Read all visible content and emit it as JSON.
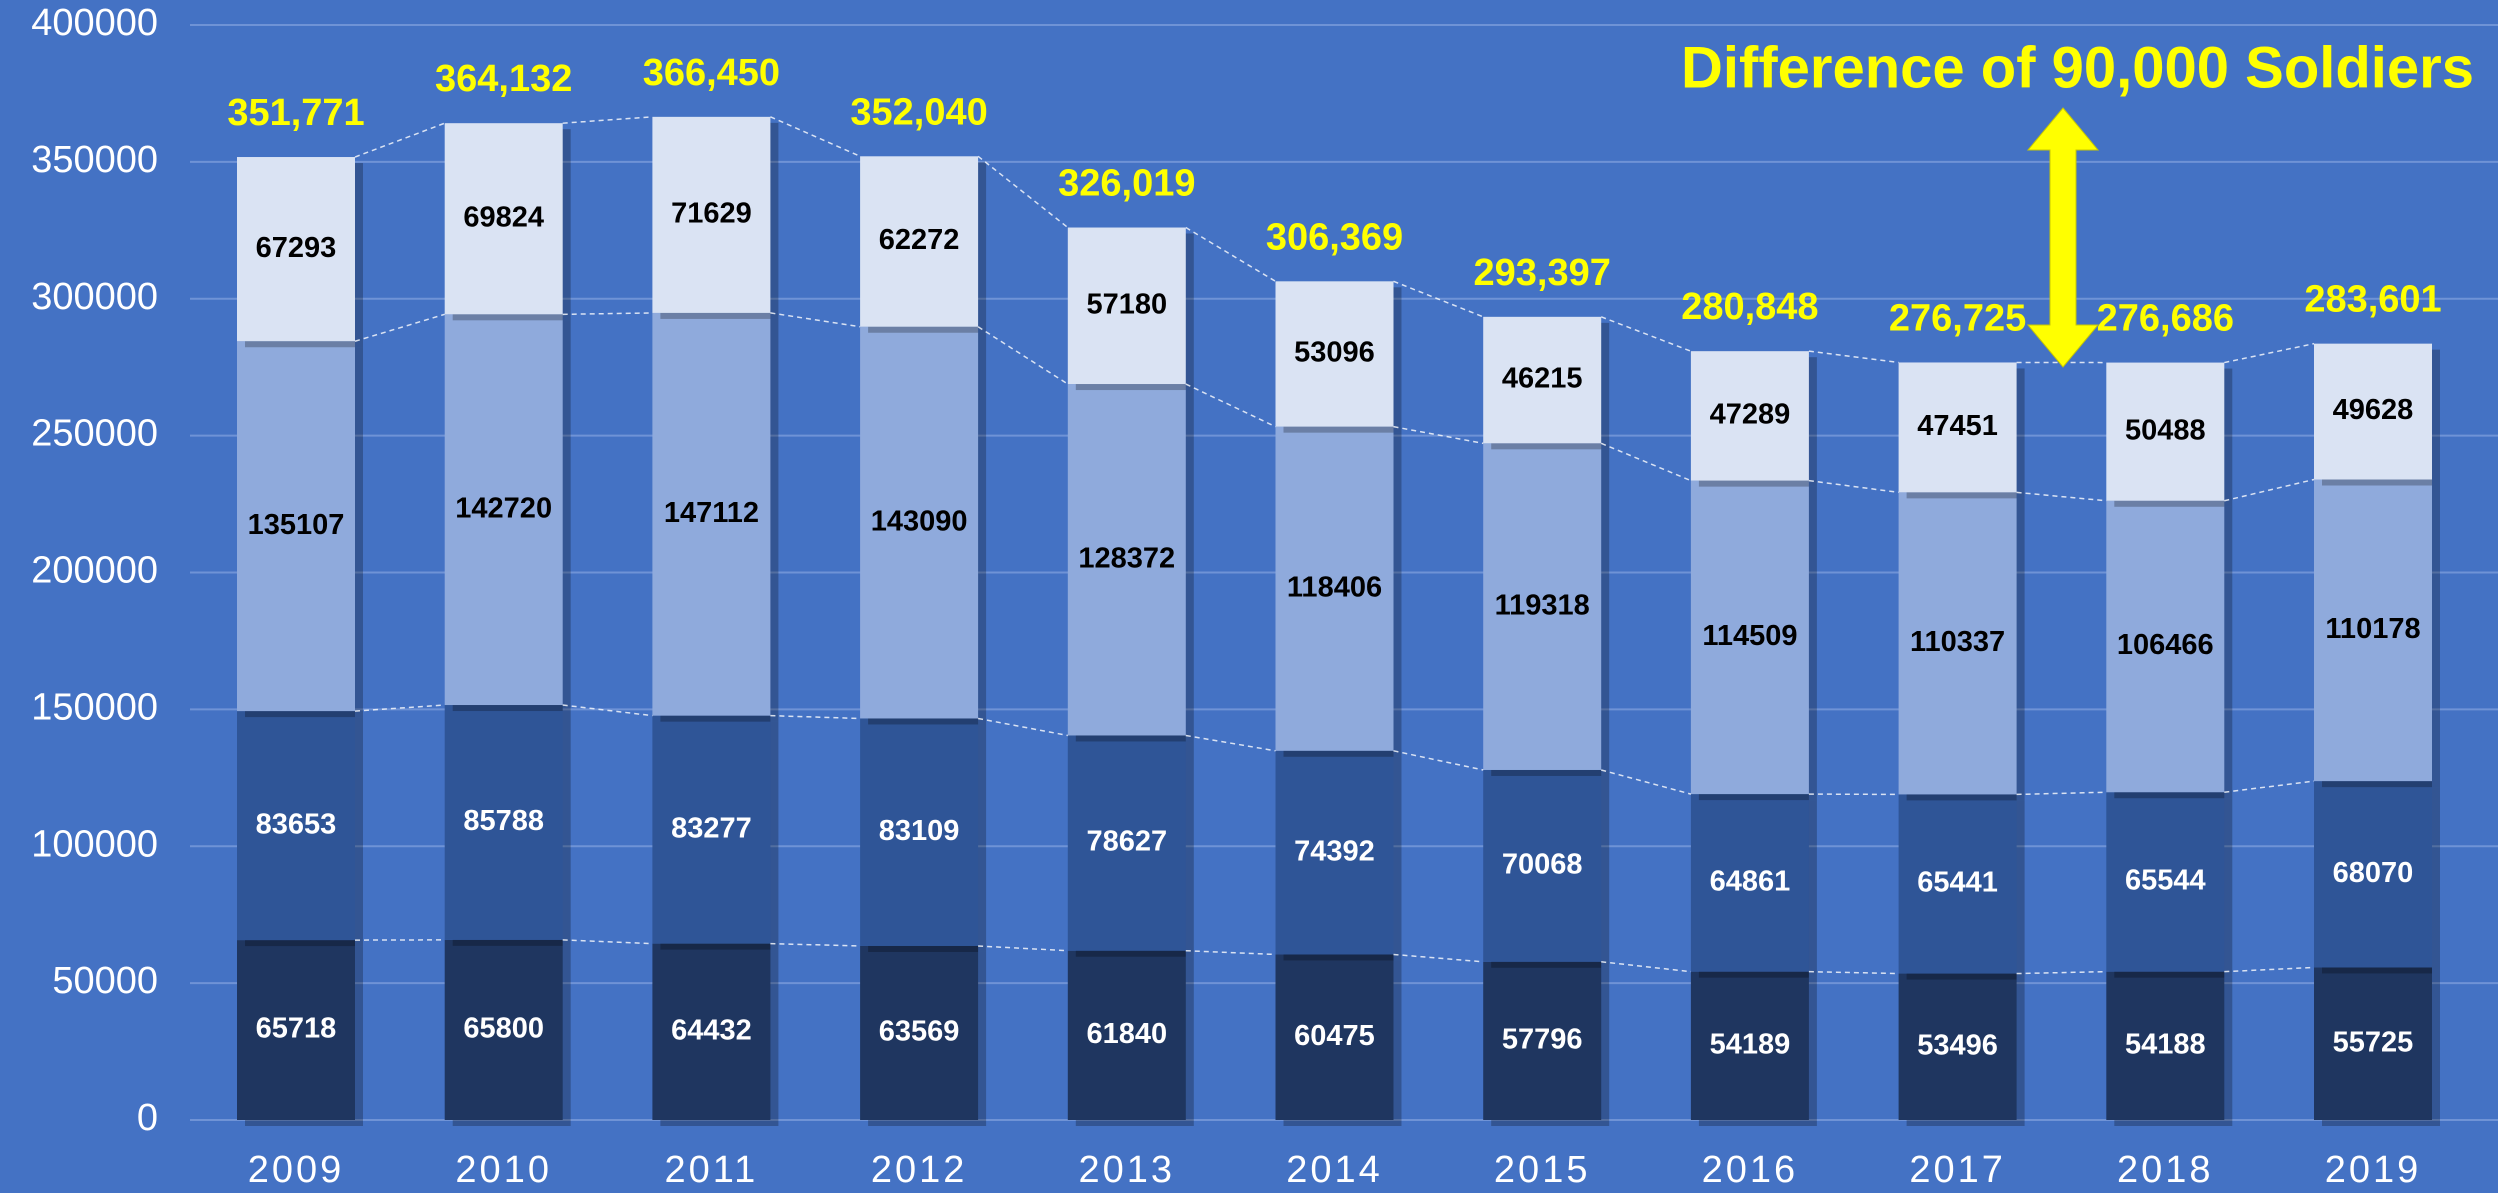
{
  "chart_data": {
    "type": "stacked_bar",
    "categories": [
      "2009",
      "2010",
      "2011",
      "2012",
      "2013",
      "2014",
      "2015",
      "2016",
      "2017",
      "2018",
      "2019"
    ],
    "series": [
      {
        "color": "#1f3660",
        "label_color": "#ffffff",
        "values": [
          65718,
          65800,
          64432,
          63569,
          61840,
          60475,
          57796,
          54189,
          53496,
          54188,
          55725
        ]
      },
      {
        "color": "#2f5597",
        "label_color": "#ffffff",
        "values": [
          83653,
          85788,
          83277,
          83109,
          78627,
          74392,
          70068,
          64861,
          65441,
          65544,
          68070
        ]
      },
      {
        "color": "#8faadc",
        "label_color": "#000000",
        "values": [
          135107,
          142720,
          147112,
          143090,
          128372,
          118406,
          119318,
          114509,
          110337,
          106466,
          110178
        ]
      },
      {
        "color": "#dae3f3",
        "label_color": "#000000",
        "values": [
          67293,
          69824,
          71629,
          62272,
          57180,
          53096,
          46215,
          47289,
          47451,
          50488,
          49628
        ]
      }
    ],
    "total_labels": [
      "351,771",
      "364,132",
      "366,450",
      "352,040",
      "326,019",
      "306,369",
      "293,397",
      "280,848",
      "276,725",
      "276,686",
      "283,601"
    ],
    "annotation": "Difference of 90,000 Soldiers",
    "ylim": [
      0,
      400000
    ],
    "yticks": [
      0,
      50000,
      100000,
      150000,
      200000,
      250000,
      300000,
      350000,
      400000
    ],
    "grid": true
  }
}
